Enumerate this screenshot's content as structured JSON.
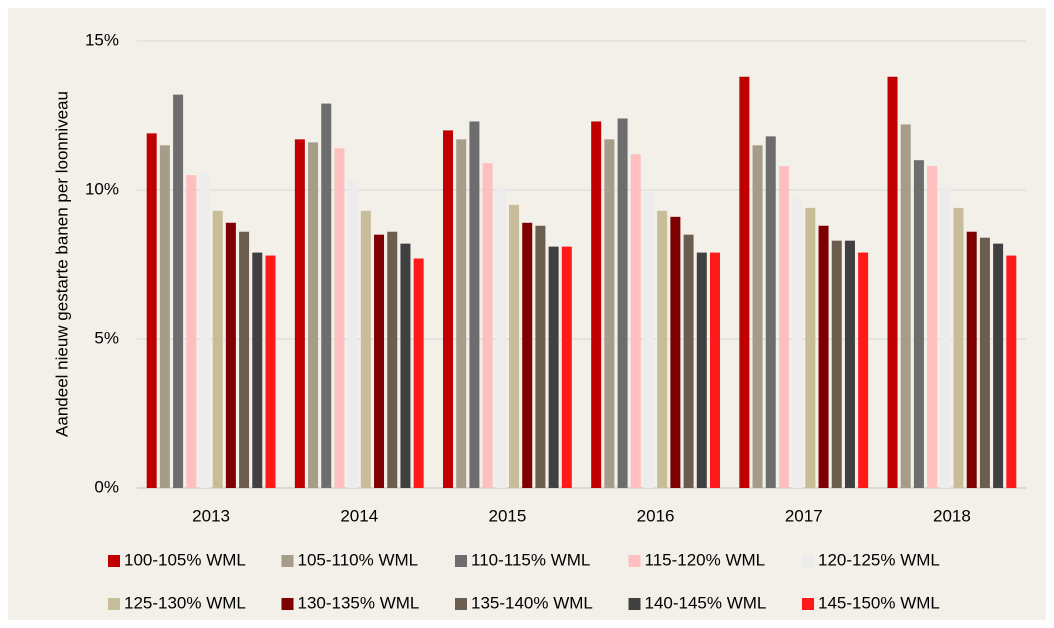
{
  "chart_data": {
    "type": "bar",
    "y_axis_label": "Aandeel nieuw gestarte banen per loonniveau",
    "categories": [
      "2013",
      "2014",
      "2015",
      "2016",
      "2017",
      "2018"
    ],
    "series": [
      {
        "name": "100-105% WML",
        "color": "#c00000",
        "values": [
          11.9,
          11.7,
          12.0,
          12.3,
          13.8,
          13.8
        ]
      },
      {
        "name": "105-110% WML",
        "color": "#a59d8a",
        "values": [
          11.5,
          11.6,
          11.7,
          11.7,
          11.5,
          12.2
        ]
      },
      {
        "name": "110-115% WML",
        "color": "#6d6d6d",
        "values": [
          13.2,
          12.9,
          12.3,
          12.4,
          11.8,
          11.0
        ]
      },
      {
        "name": "115-120% WML",
        "color": "#ffbfbf",
        "values": [
          10.5,
          11.4,
          10.9,
          11.2,
          10.8,
          10.8
        ]
      },
      {
        "name": "120-125% WML",
        "color": "#ececec",
        "values": [
          10.6,
          10.3,
          10.1,
          9.9,
          9.7,
          10.1
        ]
      },
      {
        "name": "125-130% WML",
        "color": "#c7bd98",
        "values": [
          9.3,
          9.3,
          9.5,
          9.3,
          9.4,
          9.4
        ]
      },
      {
        "name": "130-135% WML",
        "color": "#7f0000",
        "values": [
          8.9,
          8.5,
          8.9,
          9.1,
          8.8,
          8.6
        ]
      },
      {
        "name": "135-140% WML",
        "color": "#6b5e4e",
        "values": [
          8.6,
          8.6,
          8.8,
          8.5,
          8.3,
          8.4
        ]
      },
      {
        "name": "140-145% WML",
        "color": "#404040",
        "values": [
          7.9,
          8.2,
          8.1,
          7.9,
          8.3,
          8.2
        ]
      },
      {
        "name": "145-150% WML",
        "color": "#ff1a1a",
        "values": [
          7.8,
          7.7,
          8.1,
          7.9,
          7.9,
          7.8
        ]
      }
    ],
    "ylim": [
      0,
      15
    ],
    "yticks": [
      {
        "value": 0,
        "label": "0%"
      },
      {
        "value": 5,
        "label": "5%"
      },
      {
        "value": 10,
        "label": "10%"
      },
      {
        "value": 15,
        "label": "15%"
      }
    ],
    "grid": true
  }
}
